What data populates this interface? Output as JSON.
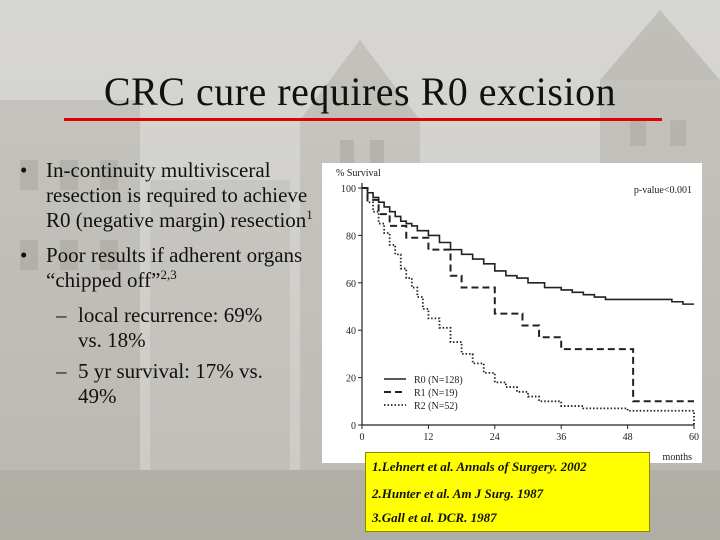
{
  "slide": {
    "title": "CRC cure requires R0 excision",
    "bullets": [
      {
        "pre": "In-continuity multivisceral resection is required to achieve R0 (negative margin) resection",
        "sup": "1"
      },
      {
        "pre": "Poor results if adherent organs “chipped off”",
        "sup": "2,3"
      }
    ],
    "subbullets": [
      {
        "line1": "local recurrence: 69%",
        "line2": "vs. 18%"
      },
      {
        "line1": "5 yr survival: 17% vs.",
        "line2": "49%"
      }
    ],
    "bullet_glyph": "•",
    "dash_glyph": "–"
  },
  "references": [
    "1.Lehnert et al. Annals of Surgery. 2002",
    "2.Hunter et al. Am J Surg. 1987",
    "3.Gall et al. DCR. 1987"
  ],
  "colors": {
    "title_rule": "#e00000",
    "reference_box": "#ffff00",
    "series": "#222222"
  },
  "chart_data": {
    "type": "line",
    "step": true,
    "ylabel": "% Survival",
    "xlabel": "months",
    "annotation": "p-value<0.001",
    "xlim": [
      0,
      60
    ],
    "ylim": [
      0,
      100
    ],
    "xticks": [
      0,
      12,
      24,
      36,
      48,
      60
    ],
    "yticks": [
      0,
      20,
      40,
      60,
      80,
      100
    ],
    "grid": false,
    "legend_placement": "bottom-left",
    "series": [
      {
        "name": "R0 (N=128)",
        "style": "solid",
        "x": [
          0,
          1,
          2,
          3,
          4,
          5,
          6,
          7,
          8,
          9,
          10,
          12,
          14,
          16,
          18,
          20,
          22,
          24,
          26,
          28,
          30,
          33,
          36,
          38,
          40,
          42,
          44,
          46,
          48,
          52,
          56,
          58,
          60
        ],
        "y": [
          100,
          98,
          96,
          94,
          92,
          90,
          88,
          86,
          85,
          84,
          82,
          80,
          77,
          74,
          72,
          70,
          68,
          65,
          63,
          62,
          60,
          58,
          57,
          56,
          55,
          54,
          53,
          53,
          53,
          53,
          52,
          51,
          51
        ]
      },
      {
        "name": "R1 (N=19)",
        "style": "dashed",
        "x": [
          0,
          1,
          3,
          5,
          8,
          12,
          16,
          18,
          24,
          29,
          32,
          36,
          48,
          49,
          60
        ],
        "y": [
          100,
          95,
          89,
          84,
          79,
          74,
          63,
          58,
          47,
          42,
          37,
          32,
          32,
          10,
          10
        ]
      },
      {
        "name": "R2 (N=52)",
        "style": "dotted",
        "x": [
          0,
          1,
          2,
          3,
          4,
          5,
          6,
          7,
          8,
          9,
          10,
          11,
          12,
          14,
          16,
          18,
          20,
          22,
          24,
          26,
          28,
          30,
          32,
          36,
          40,
          48,
          58,
          60
        ],
        "y": [
          100,
          94,
          90,
          85,
          81,
          76,
          72,
          66,
          62,
          58,
          54,
          49,
          45,
          41,
          35,
          30,
          26,
          22,
          18,
          16,
          14,
          12,
          10,
          8,
          7,
          6,
          6,
          0
        ]
      }
    ]
  }
}
